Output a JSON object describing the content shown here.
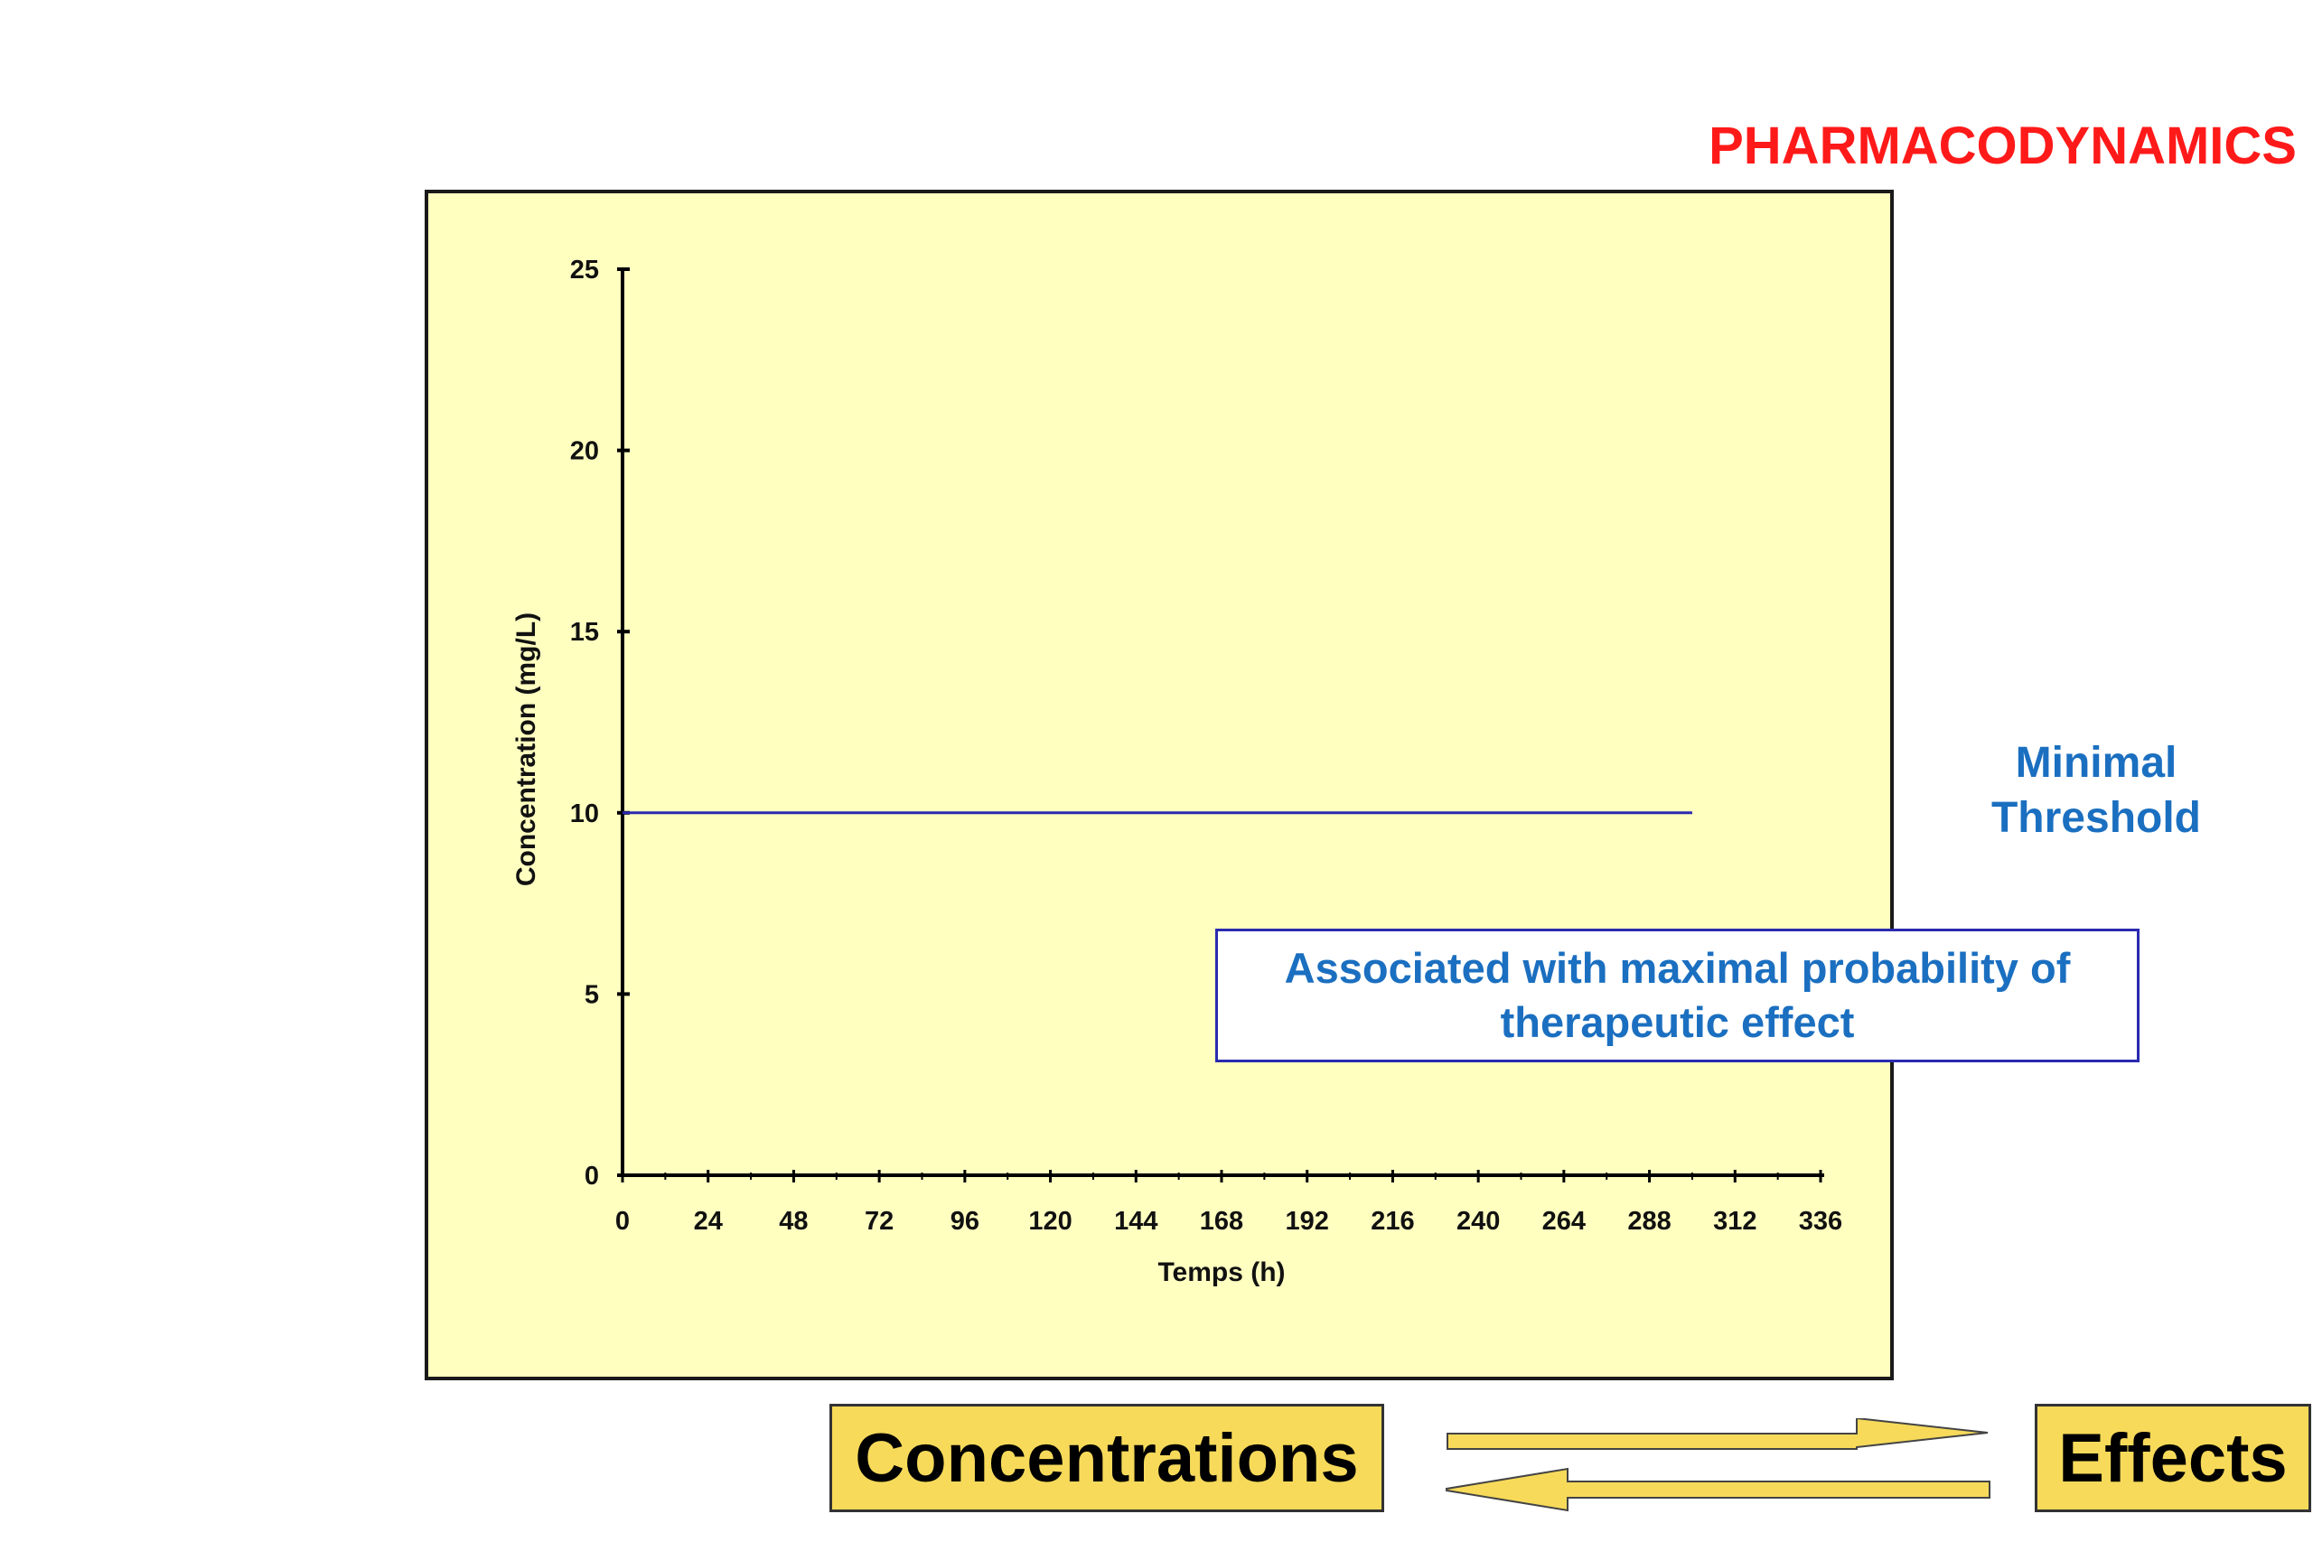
{
  "slide": {
    "title": "PHARMACODYNAMICS"
  },
  "chart_data": {
    "type": "line",
    "x": [
      0,
      300
    ],
    "series": [
      {
        "values": [
          10,
          10
        ],
        "color": "#2a2ab0"
      }
    ],
    "xlabel": "Temps (h)",
    "ylabel": "Concentration (mg/L)",
    "xlim": [
      0,
      336
    ],
    "ylim": [
      0,
      25
    ],
    "xticks": [
      0,
      24,
      48,
      72,
      96,
      120,
      144,
      168,
      192,
      216,
      240,
      264,
      288,
      312,
      336
    ],
    "yticks": [
      0,
      5,
      10,
      15,
      20,
      25
    ],
    "grid": false,
    "background": "#ffffc0"
  },
  "annotations": {
    "threshold_line1": "Minimal",
    "threshold_line2": "Threshold",
    "note": "Associated with maximal probability of therapeutic effect"
  },
  "flow": {
    "left_label": "Concentrations",
    "right_label": "Effects",
    "box_color": "#f7da5a"
  }
}
